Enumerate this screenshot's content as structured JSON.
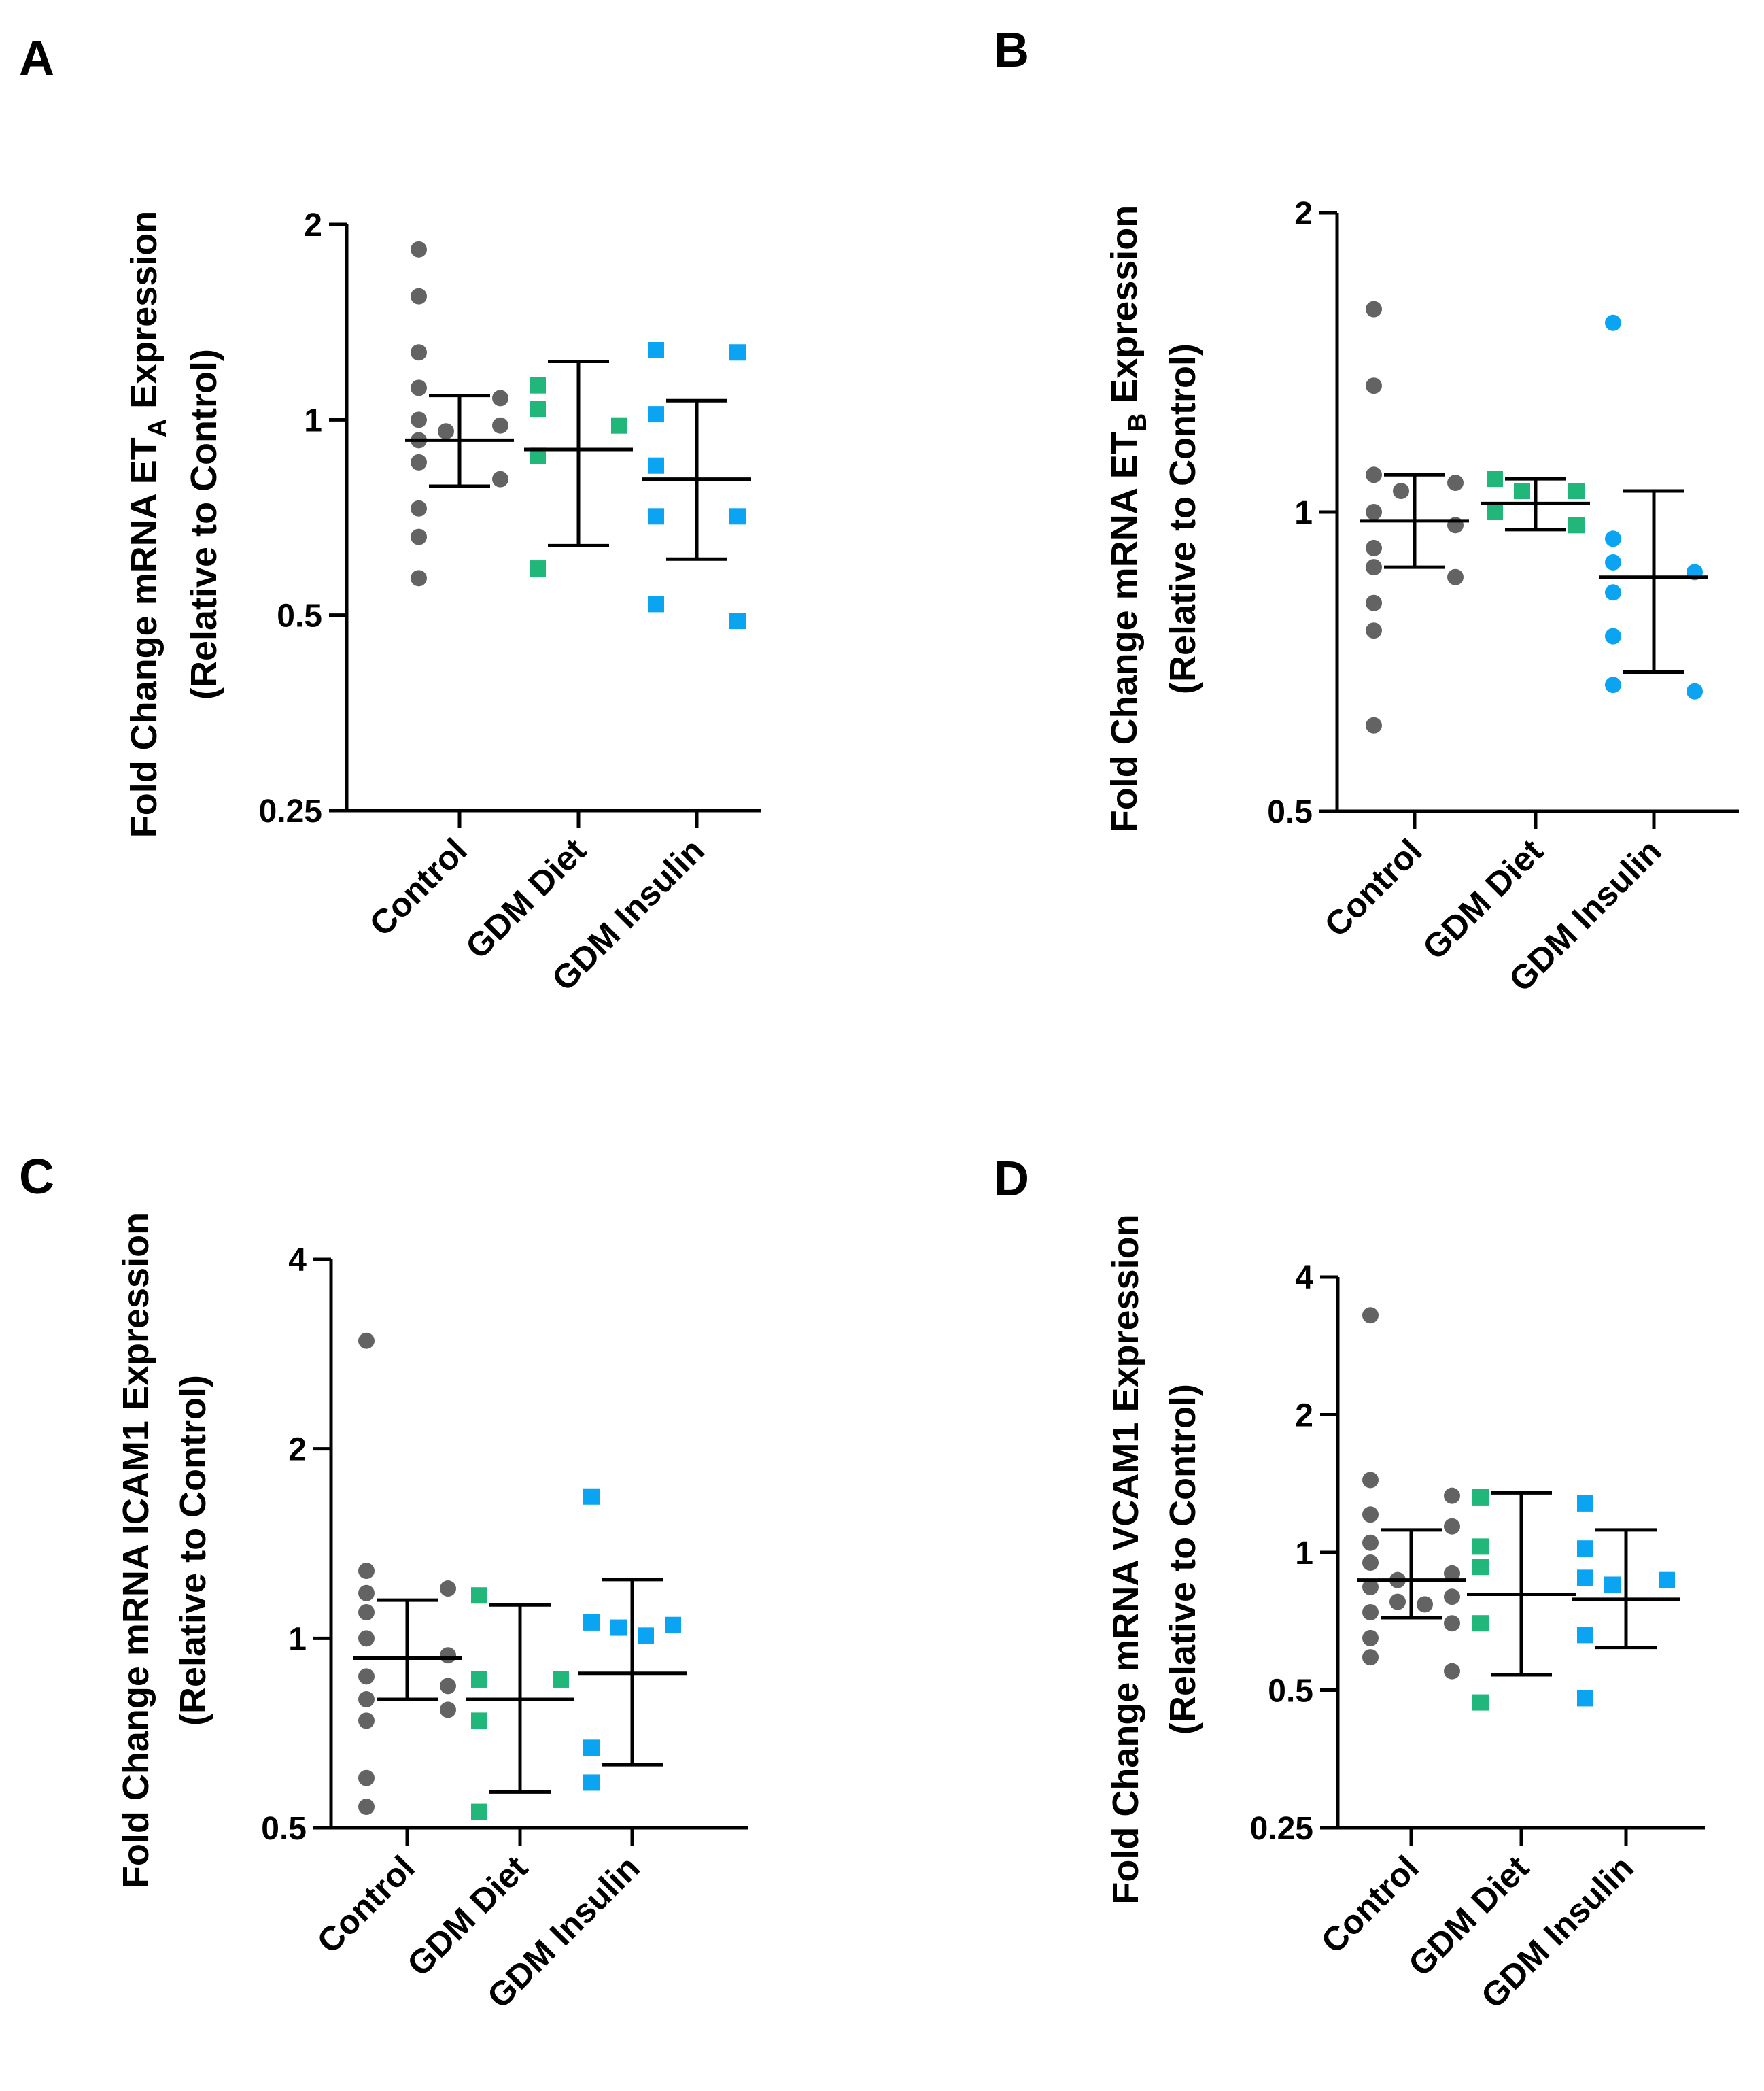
{
  "figure": {
    "colors": {
      "Control": "#636363",
      "GDM Diet": "#21b77a",
      "GDM Insulin": "#0aa4f2",
      "axis": "#000000"
    }
  },
  "chart_data": [
    {
      "panel": "A",
      "type": "scatter",
      "scale": "log2",
      "ylabel_line1_parts": [
        "Fold Change mRNA ET",
        "A",
        " Expression"
      ],
      "ylabel_line2": "(Relative to Control)",
      "yticks": [
        0.25,
        0.5,
        1,
        2
      ],
      "ytick_labels": [
        "0.25",
        "0.5",
        "1",
        "2"
      ],
      "ylim": [
        0.25,
        2
      ],
      "categories": [
        "Control",
        "GDM Diet",
        "GDM Insulin"
      ],
      "series": [
        {
          "name": "Control",
          "marker": "circle",
          "points": [
            1.83,
            1.55,
            1.27,
            1.12,
            1.08,
            1.0,
            0.98,
            0.96,
            0.93,
            0.86,
            0.81,
            0.73,
            0.66,
            0.57
          ],
          "mean": 0.93,
          "err": [
            0.79,
            1.09
          ]
        },
        {
          "name": "GDM Diet",
          "marker": "square",
          "points": [
            1.13,
            1.04,
            0.98,
            0.88,
            0.59
          ],
          "mean": 0.9,
          "err": [
            0.64,
            1.23
          ]
        },
        {
          "name": "GDM Insulin",
          "marker": "square",
          "points": [
            1.28,
            1.27,
            1.02,
            0.85,
            0.71,
            0.71,
            0.52,
            0.49
          ],
          "mean": 0.81,
          "err": [
            0.61,
            1.07
          ]
        }
      ]
    },
    {
      "panel": "B",
      "type": "scatter",
      "scale": "log2",
      "ylabel_line1_parts": [
        "Fold Change mRNA ET",
        "B",
        " Expression"
      ],
      "ylabel_line2": "(Relative to Control)",
      "yticks": [
        0.5,
        1,
        2
      ],
      "ytick_labels": [
        "0.5",
        "1",
        "2"
      ],
      "ylim": [
        0.5,
        2
      ],
      "categories": [
        "Control",
        "GDM Diet",
        "GDM Insulin"
      ],
      "series": [
        {
          "name": "Control",
          "marker": "circle",
          "points": [
            1.6,
            1.34,
            1.09,
            1.07,
            1.05,
            1.0,
            0.97,
            0.92,
            0.88,
            0.86,
            0.81,
            0.76,
            0.61
          ],
          "mean": 0.98,
          "err": [
            0.88,
            1.09
          ]
        },
        {
          "name": "GDM Diet",
          "marker": "square",
          "points": [
            1.08,
            1.05,
            1.05,
            1.0,
            0.97
          ],
          "mean": 1.02,
          "err": [
            0.96,
            1.08
          ]
        },
        {
          "name": "GDM Insulin",
          "marker": "circle",
          "points": [
            1.55,
            0.94,
            0.89,
            0.87,
            0.83,
            0.75,
            0.67,
            0.66
          ],
          "mean": 0.86,
          "err": [
            0.69,
            1.05
          ]
        }
      ]
    },
    {
      "panel": "C",
      "type": "scatter",
      "scale": "log2",
      "ylabel_line1": "Fold Change mRNA ICAM1 Expression",
      "ylabel_line2": "(Relative to Control)",
      "yticks": [
        0.5,
        1,
        2,
        4
      ],
      "ytick_labels": [
        "0.5",
        "1",
        "2",
        "4"
      ],
      "ylim": [
        0.5,
        4
      ],
      "categories": [
        "Control",
        "GDM Diet",
        "GDM Insulin"
      ],
      "series": [
        {
          "name": "Control",
          "marker": "circle",
          "points": [
            2.97,
            1.28,
            1.2,
            1.18,
            1.1,
            1.0,
            0.94,
            0.87,
            0.84,
            0.8,
            0.77,
            0.74,
            0.6,
            0.54
          ],
          "mean": 0.93,
          "err": [
            0.8,
            1.15
          ]
        },
        {
          "name": "GDM Diet",
          "marker": "square",
          "points": [
            1.17,
            0.86,
            0.86,
            0.74,
            0.53
          ],
          "mean": 0.8,
          "err": [
            0.57,
            1.13
          ]
        },
        {
          "name": "GDM Insulin",
          "marker": "square",
          "points": [
            1.68,
            1.06,
            1.05,
            1.04,
            1.01,
            0.67,
            0.59
          ],
          "mean": 0.88,
          "err": [
            0.63,
            1.24
          ]
        }
      ]
    },
    {
      "panel": "D",
      "type": "scatter",
      "scale": "log2",
      "ylabel_line1": "Fold Change mRNA VCAM1 Expression",
      "ylabel_line2": "(Relative to Control)",
      "yticks": [
        0.25,
        0.5,
        1,
        2,
        4
      ],
      "ytick_labels": [
        "0.25",
        "0.5",
        "1",
        "2",
        "4"
      ],
      "ylim": [
        0.25,
        4
      ],
      "categories": [
        "Control",
        "GDM Diet",
        "GDM Insulin"
      ],
      "series": [
        {
          "name": "Control",
          "marker": "circle",
          "points": [
            3.3,
            1.44,
            1.33,
            1.21,
            1.14,
            1.05,
            0.95,
            0.9,
            0.87,
            0.84,
            0.8,
            0.78,
            0.77,
            0.74,
            0.7,
            0.65,
            0.59,
            0.55
          ],
          "mean": 0.87,
          "err": [
            0.72,
            1.12
          ]
        },
        {
          "name": "GDM Diet",
          "marker": "square",
          "points": [
            1.32,
            1.03,
            0.93,
            0.7,
            0.47
          ],
          "mean": 0.81,
          "err": [
            0.54,
            1.35
          ]
        },
        {
          "name": "GDM Insulin",
          "marker": "square",
          "points": [
            1.28,
            1.02,
            0.88,
            0.87,
            0.85,
            0.66,
            0.48
          ],
          "mean": 0.79,
          "err": [
            0.62,
            1.12
          ]
        }
      ]
    }
  ]
}
